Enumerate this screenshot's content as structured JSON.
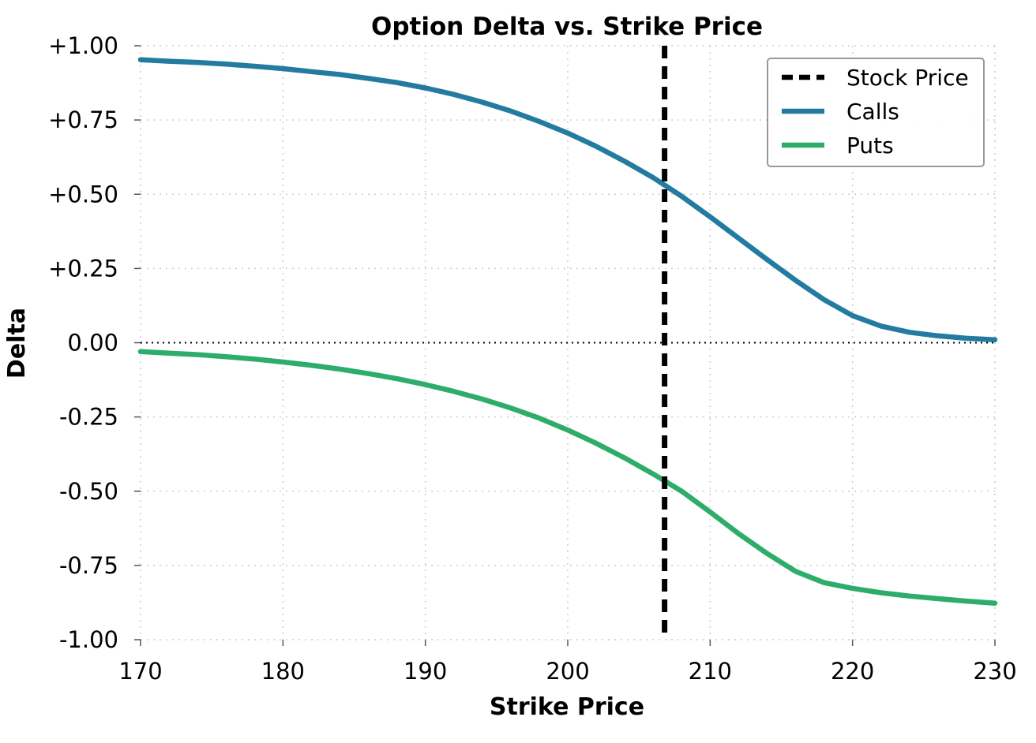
{
  "chart_data": {
    "type": "line",
    "title": "Option Delta vs. Strike Price",
    "xlabel": "Strike Price",
    "ylabel": "Delta",
    "xlim": [
      170,
      230
    ],
    "ylim": [
      -1.0,
      1.0
    ],
    "xticks": [
      170,
      180,
      190,
      200,
      210,
      220,
      230
    ],
    "xtick_labels": [
      "170",
      "180",
      "190",
      "200",
      "210",
      "220",
      "230"
    ],
    "yticks": [
      1.0,
      0.75,
      0.5,
      0.25,
      0.0,
      -0.25,
      -0.5,
      -0.75,
      -1.0
    ],
    "ytick_labels": [
      "+1.00",
      "+0.75",
      "+0.50",
      "+0.25",
      "0.00",
      "-0.25",
      "-0.50",
      "-0.75",
      "-1.00"
    ],
    "grid": true,
    "legend_position": "top-right",
    "stock_price": 206.8,
    "zero_line": 0.0,
    "x": [
      170,
      172,
      174,
      176,
      178,
      180,
      182,
      184,
      186,
      188,
      190,
      192,
      194,
      196,
      198,
      200,
      202,
      204,
      206,
      208,
      210,
      212,
      214,
      216,
      218,
      220,
      222,
      224,
      226,
      228,
      230
    ],
    "series": [
      {
        "name": "Calls",
        "color": "#247ba0",
        "style": "solid",
        "values": [
          0.953,
          0.948,
          0.944,
          0.938,
          0.931,
          0.923,
          0.913,
          0.903,
          0.89,
          0.876,
          0.858,
          0.836,
          0.81,
          0.78,
          0.745,
          0.706,
          0.661,
          0.611,
          0.556,
          0.493,
          0.424,
          0.352,
          0.28,
          0.21,
          0.145,
          0.091,
          0.056,
          0.035,
          0.023,
          0.015,
          0.01
        ]
      },
      {
        "name": "Puts",
        "color": "#2ead6a",
        "style": "solid",
        "values": [
          -0.03,
          -0.035,
          -0.04,
          -0.047,
          -0.055,
          -0.065,
          -0.076,
          -0.089,
          -0.104,
          -0.121,
          -0.141,
          -0.164,
          -0.19,
          -0.22,
          -0.254,
          -0.294,
          -0.339,
          -0.388,
          -0.442,
          -0.5,
          -0.57,
          -0.643,
          -0.71,
          -0.77,
          -0.808,
          -0.827,
          -0.842,
          -0.853,
          -0.862,
          -0.87,
          -0.877
        ]
      }
    ],
    "legend": [
      {
        "label": "Stock Price",
        "color": "#000000",
        "style": "dashed"
      },
      {
        "label": "Calls",
        "color": "#247ba0",
        "style": "solid"
      },
      {
        "label": "Puts",
        "color": "#2ead6a",
        "style": "solid"
      }
    ]
  }
}
